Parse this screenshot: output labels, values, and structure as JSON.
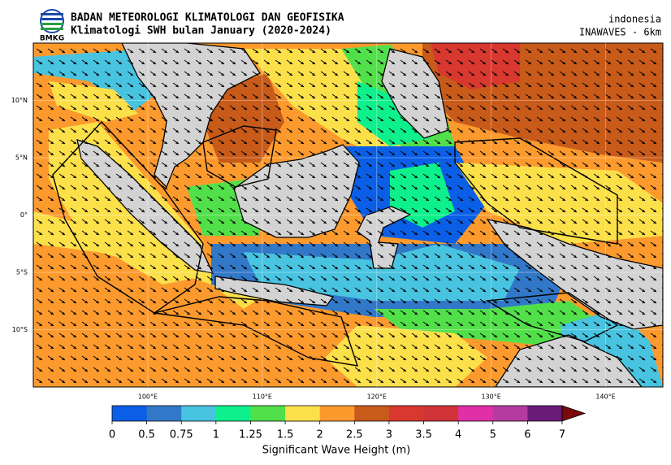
{
  "header": {
    "agency": "BADAN METEOROLOGI KLIMATOLOGI DAN GEOFISIKA",
    "title": "Klimatologi SWH bulan January (2020-2024)",
    "logo_text": "BMKG",
    "region": "indonesia",
    "model": "INAWAVES - 6km"
  },
  "map": {
    "xlim": [
      90,
      145
    ],
    "ylim": [
      -15,
      15
    ],
    "xticks": [
      {
        "value": 100,
        "label": "100°E"
      },
      {
        "value": 110,
        "label": "110°E"
      },
      {
        "value": 120,
        "label": "120°E"
      },
      {
        "value": 130,
        "label": "130°E"
      },
      {
        "value": 140,
        "label": "140°E"
      }
    ],
    "yticks": [
      {
        "value": 10,
        "label": "10°N"
      },
      {
        "value": 5,
        "label": "5°N"
      },
      {
        "value": 0,
        "label": "0°"
      },
      {
        "value": -5,
        "label": "5°S"
      },
      {
        "value": -10,
        "label": "10°S"
      }
    ]
  },
  "colorbar": {
    "label": "Significant Wave Height (m)",
    "ticks": [
      0,
      0.5,
      0.75,
      1,
      1.25,
      1.5,
      2,
      2.5,
      3,
      3.5,
      4,
      5,
      6,
      7
    ],
    "colors": [
      "#0a5fe6",
      "#3278c8",
      "#48c3e0",
      "#0ef08c",
      "#52e04a",
      "#fce04a",
      "#fd9a2e",
      "#c85a1a",
      "#d8382e",
      "#d03438",
      "#e030a8",
      "#b43ca0",
      "#6a1a78"
    ],
    "extend_color": "#7a0a0a"
  }
}
